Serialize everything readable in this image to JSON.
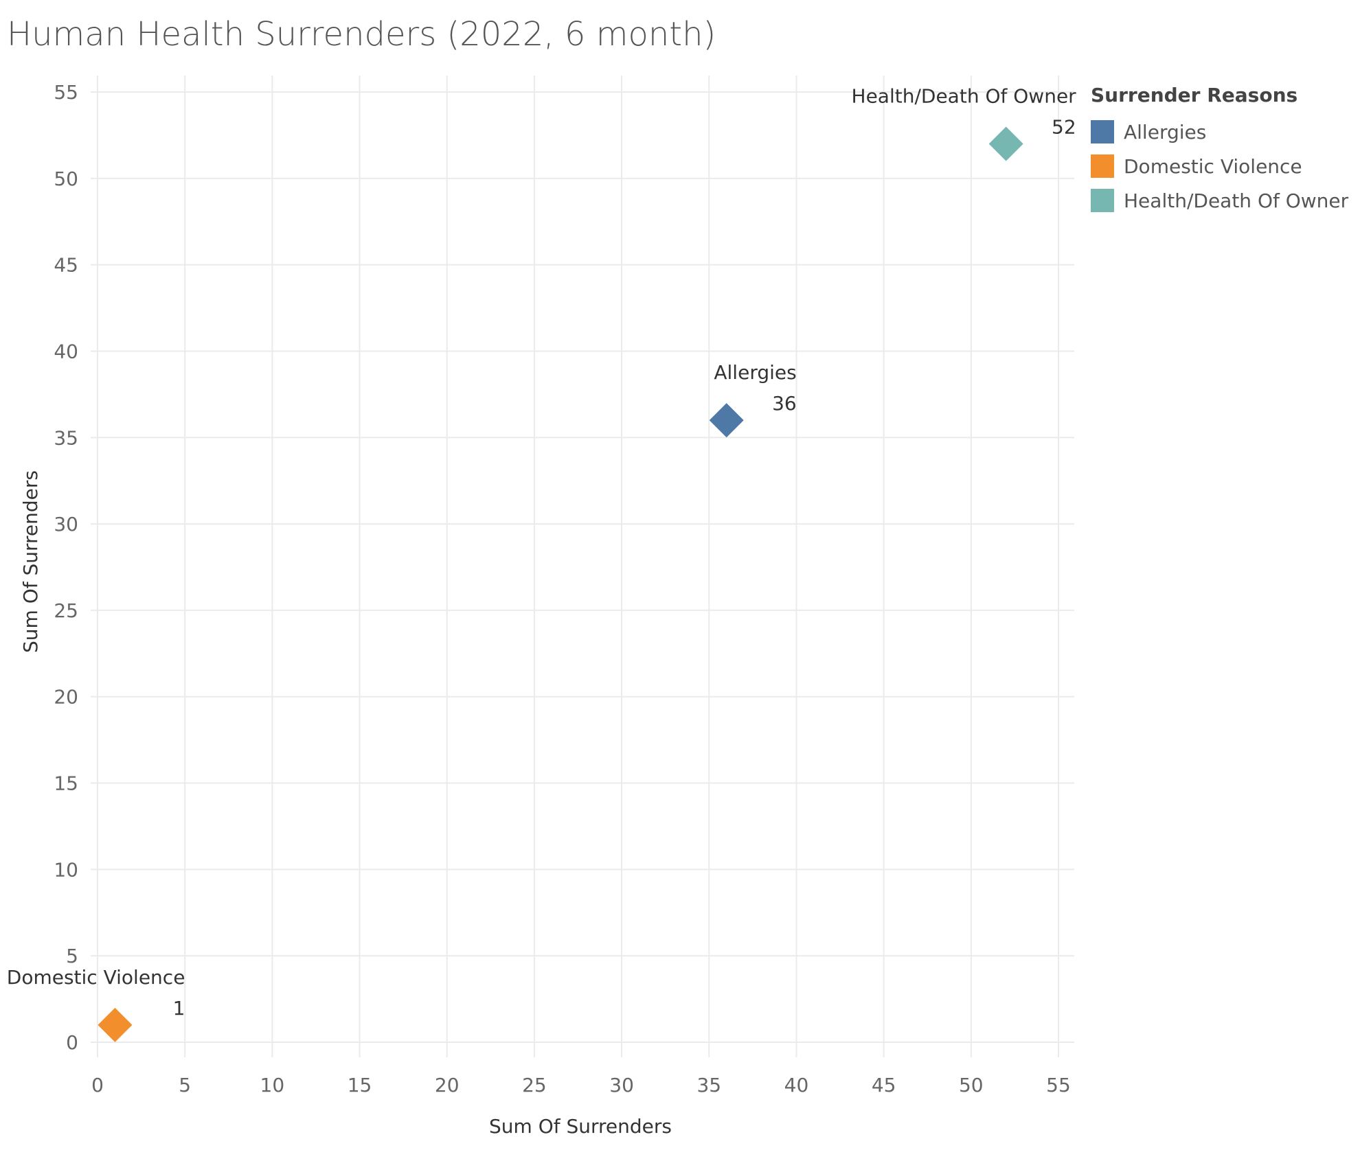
{
  "chart_data": {
    "type": "scatter",
    "title": "Human Health Surrenders (2022, 6 month)",
    "xlabel": "Sum Of Surrenders",
    "ylabel": "Sum Of Surrenders",
    "xlim": [
      0,
      55
    ],
    "ylim": [
      0,
      55
    ],
    "xticks": [
      0,
      5,
      10,
      15,
      20,
      25,
      30,
      35,
      40,
      45,
      50,
      55
    ],
    "yticks": [
      0,
      5,
      10,
      15,
      20,
      25,
      30,
      35,
      40,
      45,
      50,
      55
    ],
    "grid": true,
    "marker": "diamond",
    "legend": {
      "title": "Surrender Reasons",
      "position": "right"
    },
    "series": [
      {
        "name": "Allergies",
        "x": 36,
        "y": 36,
        "label": "Allergies",
        "value_label": "36",
        "color": "#4e79a7"
      },
      {
        "name": "Domestic Violence",
        "x": 1,
        "y": 1,
        "label": "Domestic Violence",
        "value_label": "1",
        "color": "#f28e2b"
      },
      {
        "name": "Health/Death Of Owner",
        "x": 52,
        "y": 52,
        "label": "Health/Death Of Owner",
        "value_label": "52",
        "color": "#76b7b2"
      }
    ]
  }
}
